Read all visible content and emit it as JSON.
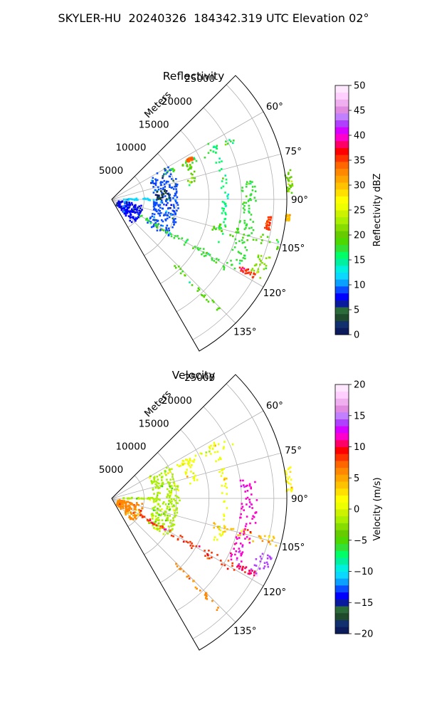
{
  "figure_title": "SKYLER-HU  20240326  184342.319 UTC Elevation 02°",
  "chart_data": [
    {
      "type": "polar-sector-radar",
      "title": "Reflectivity",
      "range_label": "Meters",
      "range_ticks": [
        "5000",
        "10000",
        "15000",
        "20000",
        "25000"
      ],
      "range_values": [
        5000,
        10000,
        15000,
        20000,
        25000
      ],
      "range_max": 27000,
      "azimuth_range": [
        45,
        150
      ],
      "azimuth_ticks": [
        "60°",
        "75°",
        "90°",
        "105°",
        "120°",
        "135°"
      ],
      "azimuth_values": [
        60,
        75,
        90,
        105,
        120,
        135
      ],
      "grid": true,
      "colorbar": {
        "label": "Reflectivity dBZ",
        "range": [
          0,
          50
        ],
        "ticks": [
          "0",
          "5",
          "10",
          "15",
          "20",
          "25",
          "30",
          "35",
          "40",
          "45",
          "50"
        ],
        "tick_values": [
          0,
          5,
          10,
          15,
          20,
          25,
          30,
          35,
          40,
          45,
          50
        ],
        "colors": [
          "#0b1b5c",
          "#12306e",
          "#1f4a2c",
          "#2b6b3a",
          "#0a1a9e",
          "#0000ff",
          "#0a4cff",
          "#0aa0ff",
          "#0ad8ff",
          "#00f0e0",
          "#00f0a0",
          "#00ff66",
          "#33e033",
          "#4cd800",
          "#66cc00",
          "#88dd00",
          "#aaee00",
          "#ccf200",
          "#eeff00",
          "#ffff00",
          "#ffe000",
          "#ffc200",
          "#ffa500",
          "#ff8800",
          "#ff6600",
          "#ff3300",
          "#ff0000",
          "#ff0066",
          "#ff00cc",
          "#d800ff",
          "#b040ff",
          "#c080ff",
          "#e08ae0",
          "#f0b0f0",
          "#ffd0ff",
          "#ffe8ff"
        ]
      },
      "features": [
        {
          "range": [
            1800,
            6500
          ],
          "az": [
            88,
            92
          ],
          "value": 12
        },
        {
          "range": [
            1000,
            5000
          ],
          "az": [
            100,
            140
          ],
          "value": 8
        },
        {
          "range": [
            6500,
            10500
          ],
          "az": [
            60,
            125
          ],
          "value": 9
        },
        {
          "range": [
            7000,
            9000
          ],
          "az": [
            80,
            90
          ],
          "value": 4
        },
        {
          "range": [
            5000,
            22000
          ],
          "az": [
            118,
            122
          ],
          "value": 18
        },
        {
          "range": [
            9000,
            21000
          ],
          "az": [
            63,
            66
          ],
          "value": 17
        },
        {
          "range": [
            16000,
            27000
          ],
          "az": [
            103,
            107
          ],
          "value": 19
        },
        {
          "range": [
            20000,
            22500
          ],
          "az": [
            82,
            118
          ],
          "value": 18
        },
        {
          "range": [
            24000,
            26500
          ],
          "az": [
            110,
            118
          ],
          "value": 21
        },
        {
          "range": [
            17000,
            18000
          ],
          "az": [
            60,
            112
          ],
          "value": 16
        },
        {
          "range": [
            14000,
            24000
          ],
          "az": [
            135,
            137
          ],
          "value": 19
        },
        {
          "range": [
            12000,
            13500
          ],
          "az": [
            62,
            80
          ],
          "value": 20
        },
        {
          "range": [
            22000,
            25000
          ],
          "az": [
            117,
            119
          ],
          "value": 36
        },
        {
          "range": [
            13000,
            14000
          ],
          "az": [
            62,
            64
          ],
          "value": 34
        },
        {
          "range": [
            24000,
            24800
          ],
          "az": [
            96,
            101
          ],
          "value": 35
        },
        {
          "range": [
            27000,
            28000
          ],
          "az": [
            80,
            88
          ],
          "value": 20
        },
        {
          "range": [
            27000,
            27600
          ],
          "az": [
            95,
            97
          ],
          "value": 30
        }
      ]
    },
    {
      "type": "polar-sector-radar",
      "title": "Velocity",
      "range_label": "Meters",
      "range_ticks": [
        "5000",
        "10000",
        "15000",
        "20000",
        "25000"
      ],
      "range_values": [
        5000,
        10000,
        15000,
        20000,
        25000
      ],
      "range_max": 27000,
      "azimuth_range": [
        45,
        150
      ],
      "azimuth_ticks": [
        "60°",
        "75°",
        "90°",
        "105°",
        "120°",
        "135°"
      ],
      "azimuth_values": [
        60,
        75,
        90,
        105,
        120,
        135
      ],
      "grid": true,
      "colorbar": {
        "label": "Velocity (m/s)",
        "range": [
          -20,
          20
        ],
        "ticks": [
          "−20",
          "−15",
          "−10",
          "−5",
          "0",
          "5",
          "10",
          "15",
          "20"
        ],
        "tick_values": [
          -20,
          -15,
          -10,
          -5,
          0,
          5,
          10,
          15,
          20
        ],
        "colors": [
          "#0b1b5c",
          "#12306e",
          "#1f4a2c",
          "#2b6b3a",
          "#0a1a9e",
          "#0000ff",
          "#0a4cff",
          "#0aa0ff",
          "#0ad8ff",
          "#00f0e0",
          "#00f0a0",
          "#00ff66",
          "#33e033",
          "#4cd800",
          "#66cc00",
          "#88dd00",
          "#aaee00",
          "#ccf200",
          "#eeff00",
          "#ffff00",
          "#ffe000",
          "#ffc200",
          "#ffa500",
          "#ff8800",
          "#ff6600",
          "#ff3300",
          "#ff0000",
          "#ff0066",
          "#ff00cc",
          "#d800ff",
          "#b040ff",
          "#c080ff",
          "#e08ae0",
          "#f0b0f0",
          "#ffd0ff",
          "#ffe8ff"
        ]
      },
      "features": [
        {
          "range": [
            1800,
            6500
          ],
          "az": [
            88,
            92
          ],
          "value": -2
        },
        {
          "range": [
            1000,
            5000
          ],
          "az": [
            100,
            140
          ],
          "value": 6
        },
        {
          "range": [
            6500,
            10500
          ],
          "az": [
            60,
            125
          ],
          "value": -2
        },
        {
          "range": [
            5000,
            22000
          ],
          "az": [
            118,
            122
          ],
          "value": 8
        },
        {
          "range": [
            9000,
            21000
          ],
          "az": [
            63,
            66
          ],
          "value": 1
        },
        {
          "range": [
            16000,
            27000
          ],
          "az": [
            103,
            107
          ],
          "value": 4
        },
        {
          "range": [
            20000,
            22500
          ],
          "az": [
            82,
            118
          ],
          "value": 12
        },
        {
          "range": [
            24000,
            26500
          ],
          "az": [
            110,
            118
          ],
          "value": 14
        },
        {
          "range": [
            17000,
            18000
          ],
          "az": [
            60,
            112
          ],
          "value": 1
        },
        {
          "range": [
            14000,
            24000
          ],
          "az": [
            135,
            137
          ],
          "value": 6
        },
        {
          "range": [
            12000,
            13500
          ],
          "az": [
            62,
            80
          ],
          "value": 1
        },
        {
          "range": [
            22000,
            25000
          ],
          "az": [
            117,
            119
          ],
          "value": 10
        },
        {
          "range": [
            27000,
            28000
          ],
          "az": [
            80,
            88
          ],
          "value": 2
        }
      ]
    }
  ]
}
